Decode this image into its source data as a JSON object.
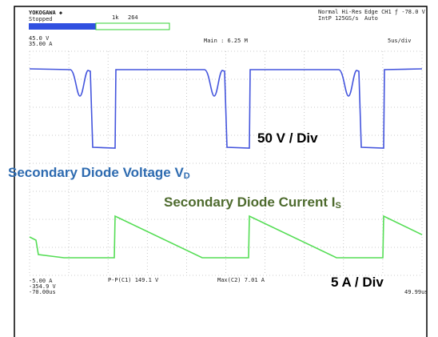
{
  "header": {
    "brand": "YOKOGAWA ◆",
    "status": "Stopped",
    "record_marker": "1k",
    "record": "264",
    "acq_mode": "Normal Hi-Res",
    "sample_rate": "IntP 125GS/s",
    "trigger": "Edge CH1 ƒ -78.0 V",
    "trigger_mode": "Auto"
  },
  "screen": {
    "ch1_top": "45.0 V",
    "ch2_top": "35.00 A",
    "main": "Main : 6.25 M",
    "timebase": "5us/div",
    "ch2_bottom": "-5.00 A",
    "ch1_bottom": "-354.9 V",
    "time_start": "-70.00us",
    "time_end": "49.99us",
    "measure_1": "P-P(C1)  149.1 V",
    "measure_2": "Max(C2)  7.01 A"
  },
  "annotations": {
    "voltage_scale": "50 V / Div",
    "voltage_label": {
      "text": "Secondary Diode Voltage V",
      "subscript": "D"
    },
    "current_label": {
      "text": "Secondary Diode Current I",
      "subscript": "S"
    },
    "current_scale": "5 A / Div"
  }
}
